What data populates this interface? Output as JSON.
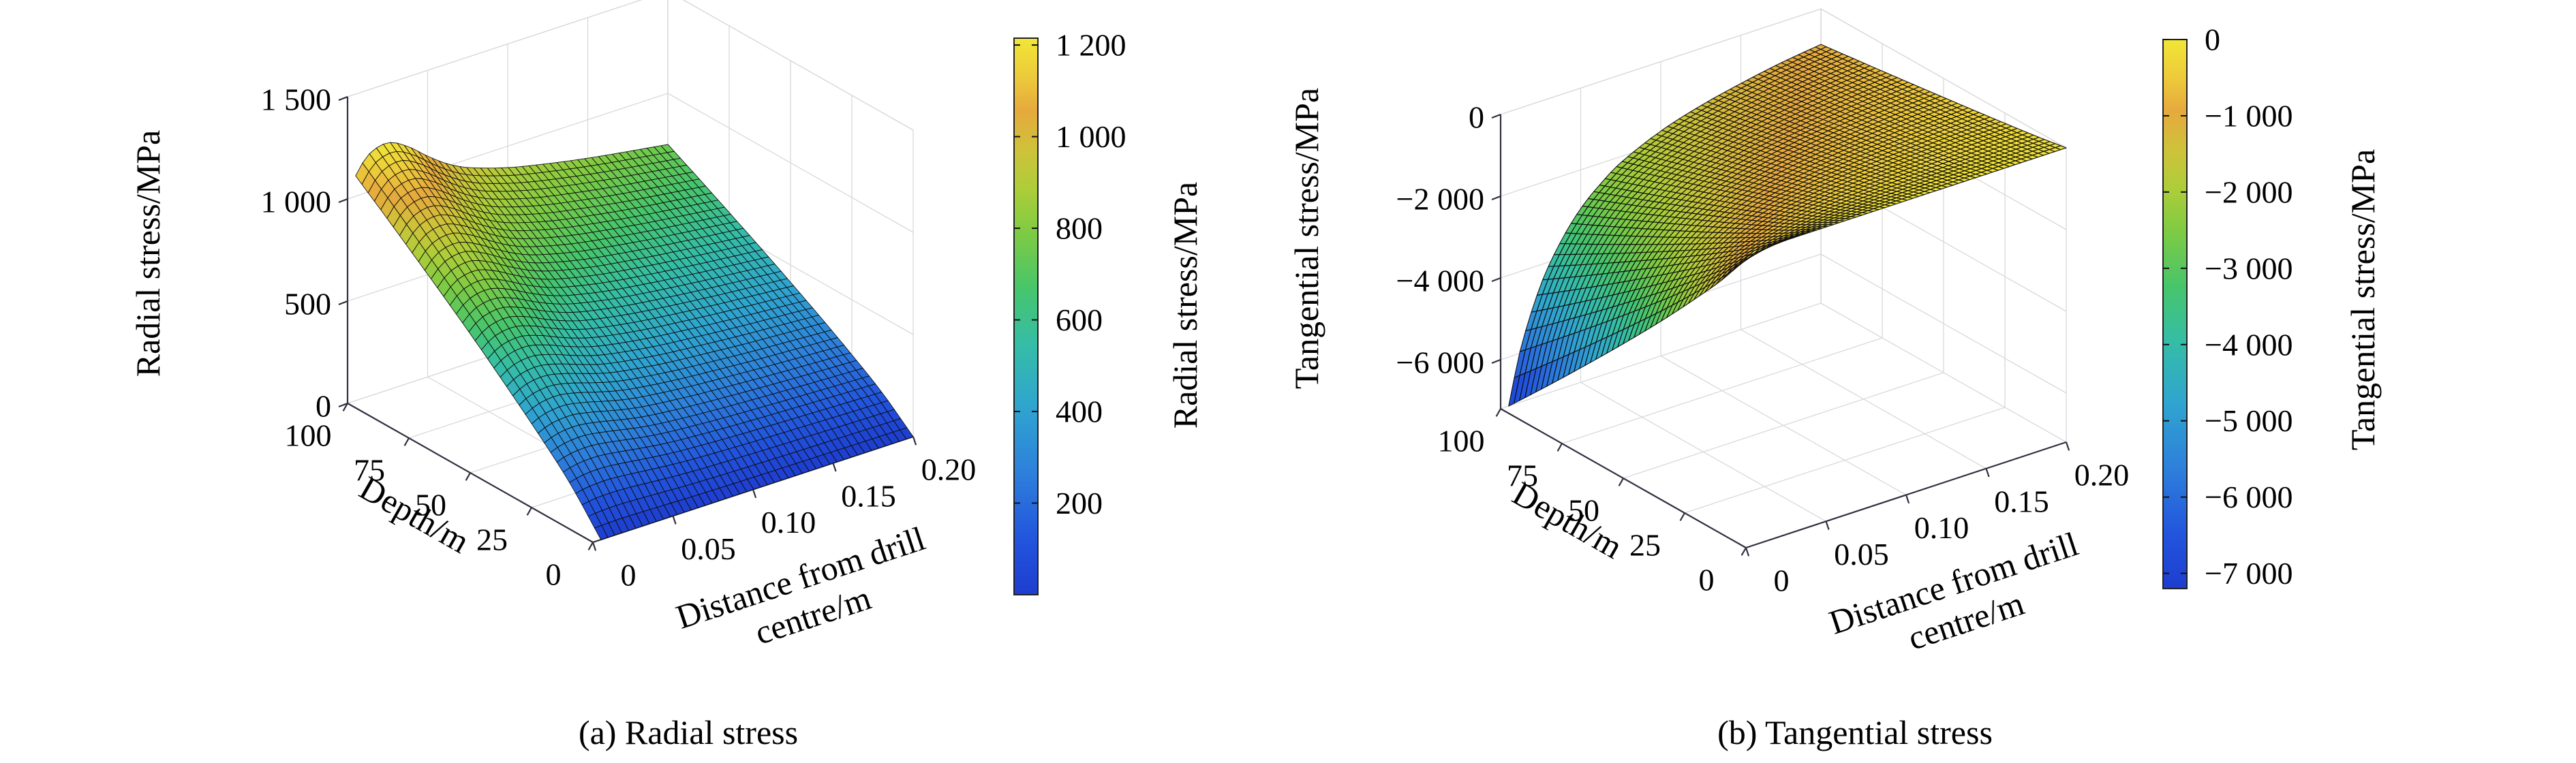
{
  "figure": {
    "background": "#ffffff",
    "axis_color": "#2f2f3f",
    "grid_color": "#d9d9d9",
    "mesh_edge_color": "#0b0b0b"
  },
  "colormap": {
    "stops": [
      {
        "t": 0.0,
        "c": "#1e3dd0"
      },
      {
        "t": 0.1,
        "c": "#2255dd"
      },
      {
        "t": 0.22,
        "c": "#2e80db"
      },
      {
        "t": 0.34,
        "c": "#2fa5cf"
      },
      {
        "t": 0.45,
        "c": "#35bda6"
      },
      {
        "t": 0.55,
        "c": "#47c56b"
      },
      {
        "t": 0.65,
        "c": "#7ecb43"
      },
      {
        "t": 0.73,
        "c": "#aecd39"
      },
      {
        "t": 0.8,
        "c": "#cfc23a"
      },
      {
        "t": 0.87,
        "c": "#e6a93d"
      },
      {
        "t": 0.93,
        "c": "#edca3b"
      },
      {
        "t": 1.0,
        "c": "#f1e636"
      }
    ]
  },
  "chart_data": [
    {
      "type": "surface3d",
      "caption": "(a) Radial stress",
      "xlabel_lines": [
        "Distance from drill",
        "centre/m"
      ],
      "ylabel": "Depth/m",
      "zlabel": "Radial stress/MPa",
      "xlim": [
        0,
        0.2
      ],
      "ylim": [
        0,
        100
      ],
      "zlim": [
        0,
        1500
      ],
      "x_ticks": [
        0,
        0.05,
        0.1,
        0.15,
        0.2
      ],
      "x_tick_labels": [
        "0",
        "0.05",
        "0.10",
        "0.15",
        "0.20"
      ],
      "y_ticks": [
        100,
        75,
        50,
        25,
        0
      ],
      "y_tick_labels": [
        "100",
        "75",
        "50",
        "25",
        "0"
      ],
      "z_ticks": [
        0,
        500,
        1000,
        1500
      ],
      "z_tick_labels": [
        "0",
        "500",
        "1 000",
        "1 500"
      ],
      "caxis": [
        0,
        1215
      ],
      "colorbar": {
        "label": "Radial stress/MPa",
        "ticks": [
          200,
          400,
          600,
          800,
          1000,
          1200
        ],
        "tick_labels": [
          "200",
          "400",
          "600",
          "800",
          "1 000",
          "1 200"
        ]
      },
      "grid_x": [
        0.005,
        0.0125,
        0.025,
        0.0375,
        0.05,
        0.0625,
        0.075,
        0.1,
        0.125,
        0.15,
        0.175,
        0.2
      ],
      "grid_y": [
        0,
        12.5,
        25,
        37.5,
        50,
        62.5,
        75,
        87.5,
        100
      ],
      "values": [
        [
          0,
          0,
          0,
          0,
          0,
          0,
          0,
          0,
          0,
          0,
          0,
          0
        ],
        [
          188,
          202,
          207,
          198,
          185,
          173,
          164,
          153,
          145,
          139,
          133,
          128
        ],
        [
          339,
          363,
          373,
          357,
          333,
          311,
          296,
          276,
          262,
          250,
          240,
          231
        ],
        [
          477,
          512,
          525,
          503,
          469,
          438,
          417,
          388,
          369,
          352,
          339,
          326
        ],
        [
          611,
          655,
          672,
          644,
          599,
          561,
          533,
          497,
          472,
          451,
          433,
          416
        ],
        [
          738,
          792,
          812,
          778,
          725,
          678,
          644,
          600,
          570,
          545,
          523,
          503
        ],
        [
          861,
          924,
          947,
          908,
          846,
          791,
          752,
          701,
          666,
          636,
          611,
          587
        ],
        [
          982,
          1054,
          1080,
          1036,
          964,
          902,
          857,
          799,
          759,
          725,
          697,
          670
        ],
        [
          1100,
          1180,
          1210,
          1160,
          1080,
          1010,
          960,
          895,
          850,
          812,
          780,
          750
        ]
      ]
    },
    {
      "type": "surface3d",
      "caption": "(b) Tangential stress",
      "xlabel_lines": [
        "Distance from drill",
        "centre/m"
      ],
      "ylabel": "Depth/m",
      "zlabel": "Tangential stress/MPa",
      "xlim": [
        0,
        0.2
      ],
      "ylim": [
        0,
        100
      ],
      "zlim": [
        -7200,
        0
      ],
      "x_ticks": [
        0,
        0.05,
        0.1,
        0.15,
        0.2
      ],
      "x_tick_labels": [
        "0",
        "0.05",
        "0.10",
        "0.15",
        "0.20"
      ],
      "y_ticks": [
        100,
        75,
        50,
        25,
        0
      ],
      "y_tick_labels": [
        "100",
        "75",
        "50",
        "25",
        "0"
      ],
      "z_ticks": [
        0,
        -2000,
        -4000,
        -6000
      ],
      "z_tick_labels": [
        "0",
        "−2 000",
        "−4 000",
        "−6 000"
      ],
      "caxis": [
        -7200,
        0
      ],
      "colorbar": {
        "label": "Tangential stress/MPa",
        "ticks": [
          0,
          -1000,
          -2000,
          -3000,
          -4000,
          -5000,
          -6000,
          -7000
        ],
        "tick_labels": [
          "0",
          "−1 000",
          "−2 000",
          "−3 000",
          "−4 000",
          "−5 000",
          "−6 000",
          "−7 000"
        ]
      },
      "grid_x": [
        0.005,
        0.0125,
        0.025,
        0.0375,
        0.05,
        0.0625,
        0.075,
        0.1,
        0.125,
        0.15,
        0.175,
        0.2
      ],
      "grid_y": [
        0,
        12.5,
        25,
        37.5,
        50,
        62.5,
        75,
        87.5,
        100
      ],
      "values": [
        [
          0,
          0,
          0,
          0,
          0,
          0,
          0,
          0,
          0,
          0,
          0,
          0
        ],
        [
          -1109,
          -909,
          -693,
          -554,
          -454,
          -385,
          -331,
          -262,
          -216,
          -182,
          -154,
          -134
        ],
        [
          -2066,
          -1693,
          -1292,
          -1033,
          -847,
          -718,
          -617,
          -488,
          -402,
          -339,
          -287,
          -250
        ],
        [
          -2981,
          -2443,
          -1863,
          -1490,
          -1221,
          -1035,
          -890,
          -704,
          -580,
          -489,
          -414,
          -360
        ],
        [
          -3859,
          -3162,
          -2412,
          -1930,
          -1581,
          -1340,
          -1152,
          -911,
          -750,
          -632,
          -536,
          -466
        ],
        [
          -4716,
          -3865,
          -2948,
          -2358,
          -1932,
          -1638,
          -1408,
          -1114,
          -917,
          -773,
          -655,
          -570
        ],
        [
          -5558,
          -4555,
          -3474,
          -2779,
          -2277,
          -1930,
          -1660,
          -1312,
          -1081,
          -911,
          -772,
          -672
        ],
        [
          -6386,
          -5233,
          -3992,
          -3193,
          -2617,
          -2218,
          -1907,
          -1508,
          -1242,
          -1047,
          -887,
          -772
        ],
        [
          -7200,
          -5900,
          -4500,
          -3600,
          -2950,
          -2500,
          -2150,
          -1700,
          -1400,
          -1180,
          -1000,
          -870
        ]
      ]
    }
  ]
}
